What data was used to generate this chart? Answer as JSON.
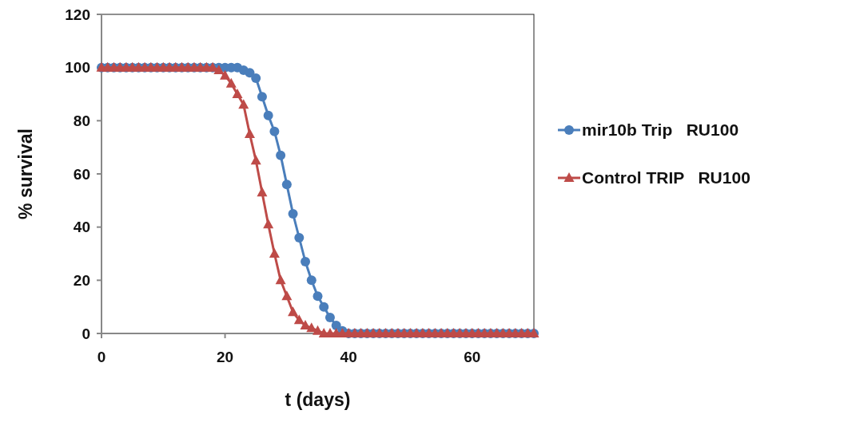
{
  "chart_data": {
    "type": "line",
    "xlabel": "t (days)",
    "ylabel": "% survival",
    "x": [
      0,
      1,
      2,
      3,
      4,
      5,
      6,
      7,
      8,
      9,
      10,
      11,
      12,
      13,
      14,
      15,
      16,
      17,
      18,
      19,
      20,
      21,
      22,
      23,
      24,
      25,
      26,
      27,
      28,
      29,
      30,
      31,
      32,
      33,
      34,
      35,
      36,
      37,
      38,
      39,
      40,
      41,
      42,
      43,
      44,
      45,
      46,
      47,
      48,
      49,
      50,
      51,
      52,
      53,
      54,
      55,
      56,
      57,
      58,
      59,
      60,
      61,
      62,
      63,
      64,
      65,
      66,
      67,
      68,
      69,
      70
    ],
    "series": [
      {
        "name": "mir10b Trip   RU100",
        "color": "#4a7ebb",
        "marker": "circle",
        "values": [
          100,
          100,
          100,
          100,
          100,
          100,
          100,
          100,
          100,
          100,
          100,
          100,
          100,
          100,
          100,
          100,
          100,
          100,
          100,
          100,
          100,
          100,
          100,
          99,
          98,
          96,
          89,
          82,
          76,
          67,
          56,
          45,
          36,
          27,
          20,
          14,
          10,
          6,
          3,
          1,
          0,
          0,
          0,
          0,
          0,
          0,
          0,
          0,
          0,
          0,
          0,
          0,
          0,
          0,
          0,
          0,
          0,
          0,
          0,
          0,
          0,
          0,
          0,
          0,
          0,
          0,
          0,
          0,
          0,
          0,
          0
        ]
      },
      {
        "name": "Control TRIP   RU100",
        "color": "#be4b48",
        "marker": "triangle",
        "values": [
          100,
          100,
          100,
          100,
          100,
          100,
          100,
          100,
          100,
          100,
          100,
          100,
          100,
          100,
          100,
          100,
          100,
          100,
          100,
          99,
          97,
          94,
          90,
          86,
          75,
          65,
          53,
          41,
          30,
          20,
          14,
          8,
          5,
          3,
          2,
          1,
          0,
          0,
          0,
          0,
          0,
          0,
          0,
          0,
          0,
          0,
          0,
          0,
          0,
          0,
          0,
          0,
          0,
          0,
          0,
          0,
          0,
          0,
          0,
          0,
          0,
          0,
          0,
          0,
          0,
          0,
          0,
          0,
          0,
          0,
          0
        ]
      }
    ],
    "xlim": [
      0,
      70
    ],
    "xticks": [
      0,
      20,
      40,
      60
    ],
    "ylim": [
      0,
      120
    ],
    "yticks": [
      0,
      20,
      40,
      60,
      80,
      100,
      120
    ],
    "grid": false,
    "legend": "right",
    "line_style": "solid"
  }
}
